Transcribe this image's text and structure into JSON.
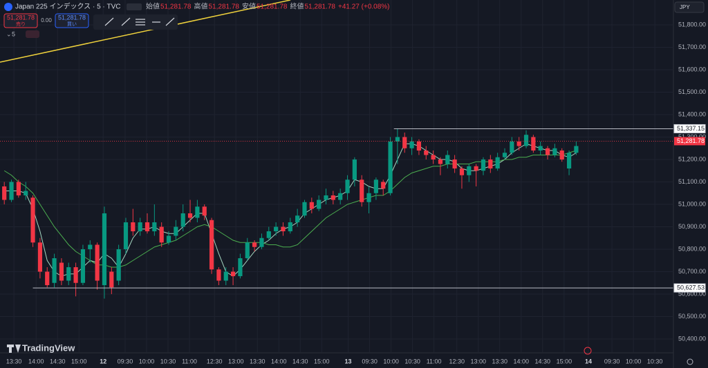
{
  "header": {
    "symbol": "Japan 225 インデックス · 5 · TVC",
    "ohlc": [
      {
        "label": "始値",
        "value": "51,281.78"
      },
      {
        "label": "高値",
        "value": "51,281.78"
      },
      {
        "label": "安値",
        "value": "51,281.78"
      },
      {
        "label": "終値",
        "value": "51,281.78"
      }
    ],
    "change": "+41.27 (+0.08%)",
    "sell_price": "51,281.78",
    "sell_label": "売り",
    "spread": "0.00",
    "buy_price": "51,281.78",
    "buy_label": "買い",
    "interval": "5",
    "currency": "JPY",
    "logo": "TradingView"
  },
  "chart_data": {
    "type": "candlestick",
    "open": [
      51080,
      51020,
      51100,
      51040,
      51030,
      50830,
      50700,
      50650,
      50740,
      50660,
      50720,
      50650,
      50800,
      50820,
      50640,
      50700,
      50660,
      50800,
      50920,
      50880,
      50920,
      50880,
      50900,
      50830,
      50860,
      50900,
      50960,
      50940,
      50990,
      50930,
      50710,
      50660,
      50700,
      50680,
      50760,
      50830,
      50810,
      50850,
      50880,
      50900,
      50880,
      50920,
      50950,
      51010,
      50980,
      51020,
      51040,
      51020,
      51050,
      51110,
      51110,
      51010,
      51050,
      51100,
      51050,
      51280,
      51300,
      51250,
      51280,
      51240,
      51220,
      51200,
      51180,
      51200,
      51160,
      51130,
      51170,
      51150,
      51200,
      51160,
      51210,
      51230,
      51280,
      51260,
      51300,
      51240,
      51250,
      51220,
      51240,
      51160,
      51230
    ],
    "high": [
      51100,
      51110,
      51110,
      51100,
      51040,
      50850,
      50720,
      50780,
      50760,
      50740,
      50740,
      50820,
      50840,
      50830,
      50990,
      50720,
      50820,
      50940,
      50980,
      50940,
      50960,
      51000,
      50920,
      50880,
      50930,
      51000,
      51020,
      51020,
      51000,
      50940,
      50720,
      50720,
      50720,
      50780,
      50850,
      50840,
      50870,
      50900,
      50920,
      50920,
      50940,
      50980,
      51020,
      51030,
      51040,
      51070,
      51060,
      51070,
      51130,
      51210,
      51130,
      51080,
      51120,
      51110,
      51300,
      51337,
      51320,
      51300,
      51290,
      51260,
      51240,
      51210,
      51240,
      51220,
      51170,
      51180,
      51180,
      51210,
      51220,
      51230,
      51250,
      51300,
      51300,
      51330,
      51310,
      51280,
      51260,
      51270,
      51250,
      51240,
      51280
    ],
    "low": [
      51000,
      51010,
      51030,
      51020,
      50810,
      50670,
      50630,
      50630,
      50640,
      50640,
      50590,
      50640,
      50740,
      50620,
      50580,
      50600,
      50640,
      50780,
      50860,
      50860,
      50870,
      50860,
      50810,
      50820,
      50840,
      50880,
      50920,
      50920,
      50930,
      50690,
      50640,
      50640,
      50640,
      50670,
      50750,
      50790,
      50800,
      50840,
      50860,
      50860,
      50870,
      50900,
      50940,
      50960,
      50970,
      51000,
      51000,
      51000,
      51020,
      51080,
      50990,
      50960,
      51020,
      51040,
      51040,
      51180,
      51230,
      51220,
      51220,
      51200,
      51180,
      51130,
      51160,
      51140,
      51070,
      51100,
      51080,
      51130,
      51140,
      51150,
      51200,
      51220,
      51240,
      51250,
      51230,
      51220,
      51200,
      51210,
      51190,
      51130,
      51220
    ],
    "close": [
      51020,
      51100,
      51040,
      51060,
      50830,
      50700,
      50640,
      50760,
      50660,
      50720,
      50650,
      50800,
      50820,
      50660,
      50960,
      50630,
      50800,
      50920,
      50880,
      50920,
      50880,
      50920,
      50830,
      50860,
      50900,
      50960,
      50940,
      50990,
      50950,
      50710,
      50660,
      50700,
      50680,
      50760,
      50830,
      50810,
      50850,
      50880,
      50900,
      50880,
      50920,
      50950,
      51010,
      50980,
      51020,
      51040,
      51020,
      51050,
      51110,
      51200,
      51010,
      51050,
      51110,
      51070,
      51280,
      51300,
      51250,
      51280,
      51240,
      51220,
      51200,
      51180,
      51220,
      51160,
      51130,
      51170,
      51150,
      51200,
      51160,
      51210,
      51230,
      51280,
      51260,
      51310,
      51240,
      51260,
      51220,
      51250,
      51200,
      51230,
      51260
    ],
    "series": [
      {
        "color": "#a5d6c1",
        "values": [
          51060,
          51060,
          51060,
          51050,
          50980,
          50880,
          50750,
          50700,
          50680,
          50690,
          50690,
          50720,
          50750,
          50740,
          50780,
          50760,
          50720,
          50780,
          50850,
          50890,
          50890,
          50900,
          50880,
          50870,
          50870,
          50900,
          50930,
          50960,
          50960,
          50870,
          50780,
          50700,
          50680,
          50710,
          50750,
          50790,
          50820,
          50840,
          50870,
          50890,
          50900,
          50920,
          50960,
          50980,
          51000,
          51020,
          51030,
          51040,
          51060,
          51110,
          51100,
          51080,
          51070,
          51070,
          51130,
          51200,
          51270,
          51270,
          51260,
          51240,
          51220,
          51200,
          51200,
          51190,
          51160,
          51150,
          51150,
          51160,
          51170,
          51180,
          51200,
          51230,
          51250,
          51270,
          51260,
          51250,
          51240,
          51240,
          51220,
          51210,
          51230
        ]
      },
      {
        "color": "#4caf50",
        "values": [
          51150,
          51130,
          51100,
          51080,
          51050,
          51000,
          50950,
          50900,
          50860,
          50820,
          50790,
          50770,
          50750,
          50730,
          50730,
          50720,
          50720,
          50730,
          50750,
          50770,
          50790,
          50810,
          50820,
          50830,
          50840,
          50860,
          50880,
          50900,
          50910,
          50900,
          50880,
          50860,
          50840,
          50830,
          50830,
          50830,
          50830,
          50820,
          50820,
          50810,
          50810,
          50820,
          50850,
          50880,
          50910,
          50940,
          50960,
          50980,
          51000,
          51010,
          51020,
          51030,
          51040,
          51040,
          51060,
          51090,
          51120,
          51140,
          51150,
          51160,
          51170,
          51170,
          51180,
          51180,
          51180,
          51180,
          51190,
          51190,
          51190,
          51190,
          51200,
          51200,
          51210,
          51210,
          51220,
          51220,
          51220,
          51220,
          51220,
          51230,
          51240
        ]
      }
    ],
    "up_color": "#089981",
    "down_color": "#f23645",
    "levels": [
      {
        "value": 51337.15,
        "label": "51,337.15"
      },
      {
        "value": 50627.53,
        "label": "50,627.53"
      }
    ],
    "last_price": {
      "value": 51281.78,
      "label": "51,281.78"
    },
    "xlim": [
      -0.6,
      93.5
    ],
    "ylim": [
      50341.5,
      51910.8
    ],
    "yticks": [
      {
        "value": 51800,
        "label": "51,800.00"
      },
      {
        "value": 51700,
        "label": "51,700.00"
      },
      {
        "value": 51600,
        "label": "51,600.00"
      },
      {
        "value": 51500,
        "label": "51,500.00"
      },
      {
        "value": 51400,
        "label": "51,400.00"
      },
      {
        "value": 51300,
        "label": "51,300.00"
      },
      {
        "value": 51200,
        "label": "51,200.00"
      },
      {
        "value": 51100,
        "label": "51,100.00"
      },
      {
        "value": 51000,
        "label": "51,000.00"
      },
      {
        "value": 50900,
        "label": "50,900.00"
      },
      {
        "value": 50800,
        "label": "50,800.00"
      },
      {
        "value": 50700,
        "label": "50,700.00"
      },
      {
        "value": 50600,
        "label": "50,600.00"
      },
      {
        "value": 50500,
        "label": "50,500.00"
      },
      {
        "value": 50400,
        "label": "50,400.00"
      }
    ],
    "xticks": [
      {
        "value": 1.35,
        "label": "13:30"
      },
      {
        "value": 4.45,
        "label": "14:00"
      },
      {
        "value": 7.45,
        "label": "14:30"
      },
      {
        "value": 10.45,
        "label": "15:00"
      },
      {
        "value": 13.83,
        "label": "12"
      },
      {
        "value": 16.9,
        "label": "09:30"
      },
      {
        "value": 19.9,
        "label": "10:00"
      },
      {
        "value": 22.9,
        "label": "10:30"
      },
      {
        "value": 25.9,
        "label": "11:00"
      },
      {
        "value": 29.4,
        "label": "12:30"
      },
      {
        "value": 32.4,
        "label": "13:00"
      },
      {
        "value": 35.4,
        "label": "13:30"
      },
      {
        "value": 38.4,
        "label": "14:00"
      },
      {
        "value": 41.4,
        "label": "14:30"
      },
      {
        "value": 44.4,
        "label": "15:00"
      },
      {
        "value": 48.1,
        "label": "13"
      },
      {
        "value": 51.1,
        "label": "09:30"
      },
      {
        "value": 54.1,
        "label": "10:00"
      },
      {
        "value": 57.1,
        "label": "10:30"
      },
      {
        "value": 60.1,
        "label": "11:00"
      },
      {
        "value": 63.3,
        "label": "12:30"
      },
      {
        "value": 66.3,
        "label": "13:00"
      },
      {
        "value": 69.3,
        "label": "13:30"
      },
      {
        "value": 72.3,
        "label": "14:00"
      },
      {
        "value": 75.3,
        "label": "14:30"
      },
      {
        "value": 78.3,
        "label": "15:00"
      },
      {
        "value": 81.7,
        "label": "14"
      },
      {
        "value": 85,
        "label": "09:30"
      },
      {
        "value": 88,
        "label": "10:00"
      },
      {
        "value": 91,
        "label": "10:30"
      }
    ],
    "grid": true
  }
}
